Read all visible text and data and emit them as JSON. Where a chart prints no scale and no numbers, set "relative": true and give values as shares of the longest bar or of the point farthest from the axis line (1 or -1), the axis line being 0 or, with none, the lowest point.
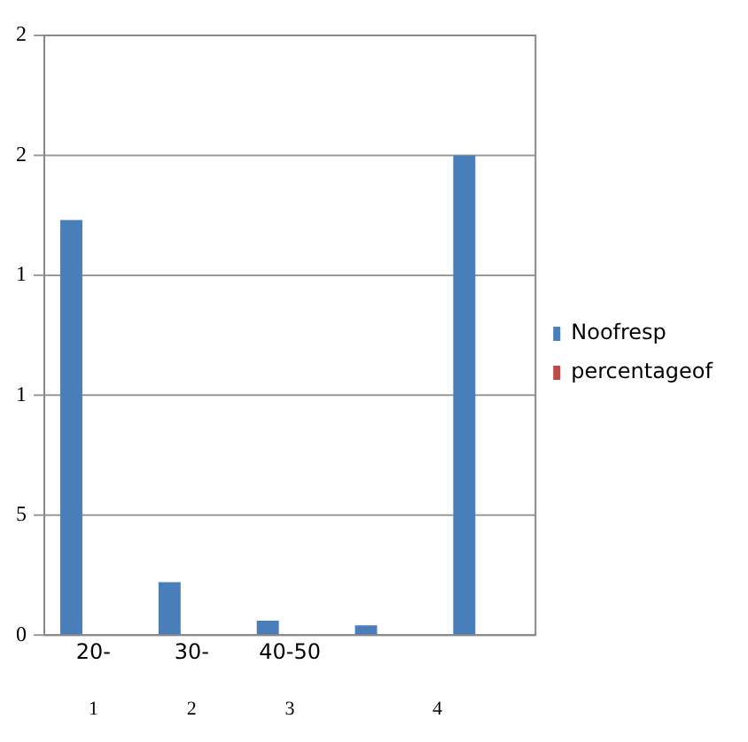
{
  "chart_data": {
    "type": "bar",
    "categories": [
      "20-",
      "30-",
      "40-50",
      null,
      null
    ],
    "series": [
      {
        "name": "Noofresp",
        "color": "#4a7ebb",
        "values": [
          0.865,
          0.11,
          0.03,
          0.02,
          1
        ]
      },
      {
        "name": "percentageof",
        "color": "#be4b48",
        "values": [
          0,
          0,
          0,
          0,
          0
        ]
      }
    ],
    "relative": true,
    "grid": "y",
    "legend": "right",
    "annotations": [
      "0",
      "5",
      "1",
      "1",
      "2",
      "2",
      "1",
      "2",
      "3",
      "4"
    ]
  }
}
